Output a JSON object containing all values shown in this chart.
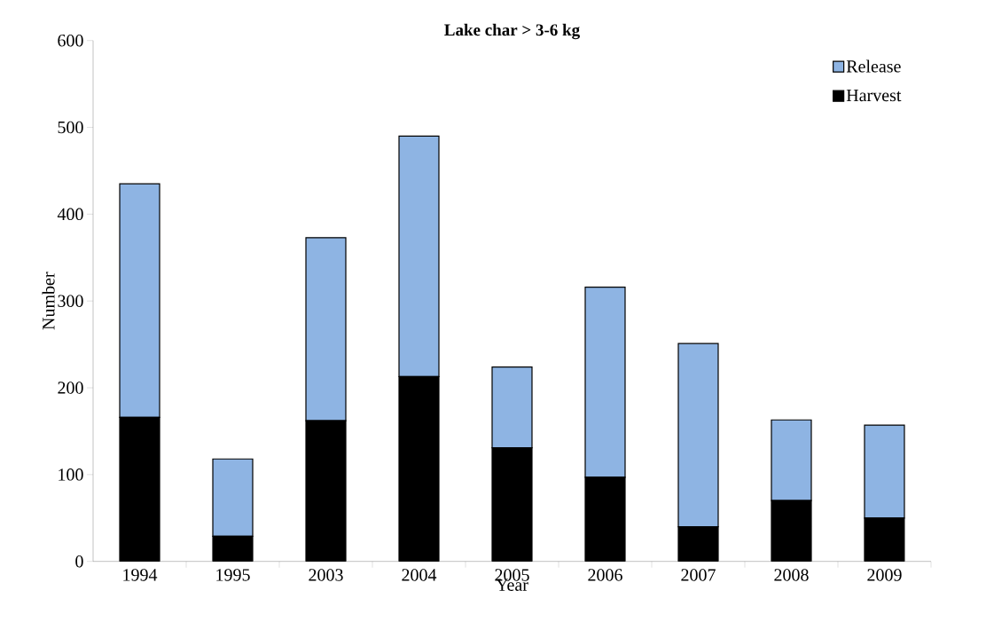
{
  "chart_data": {
    "type": "bar",
    "title": "Lake char > 3-6 kg",
    "xlabel": "Year",
    "ylabel": "Number",
    "categories": [
      "1994",
      "1995",
      "2003",
      "2004",
      "2005",
      "2006",
      "2007",
      "2008",
      "2009"
    ],
    "stacked": true,
    "series": [
      {
        "name": "Harvest",
        "color": "#000000",
        "values": [
          166,
          29,
          162,
          213,
          131,
          97,
          40,
          70,
          50
        ]
      },
      {
        "name": "Release",
        "color": "#8eb4e3",
        "values": [
          269,
          89,
          211,
          277,
          93,
          219,
          211,
          93,
          107
        ]
      }
    ],
    "ylim": [
      0,
      600
    ],
    "yticks": [
      0,
      100,
      200,
      300,
      400,
      500,
      600
    ],
    "legend": "top right",
    "grid": false
  }
}
